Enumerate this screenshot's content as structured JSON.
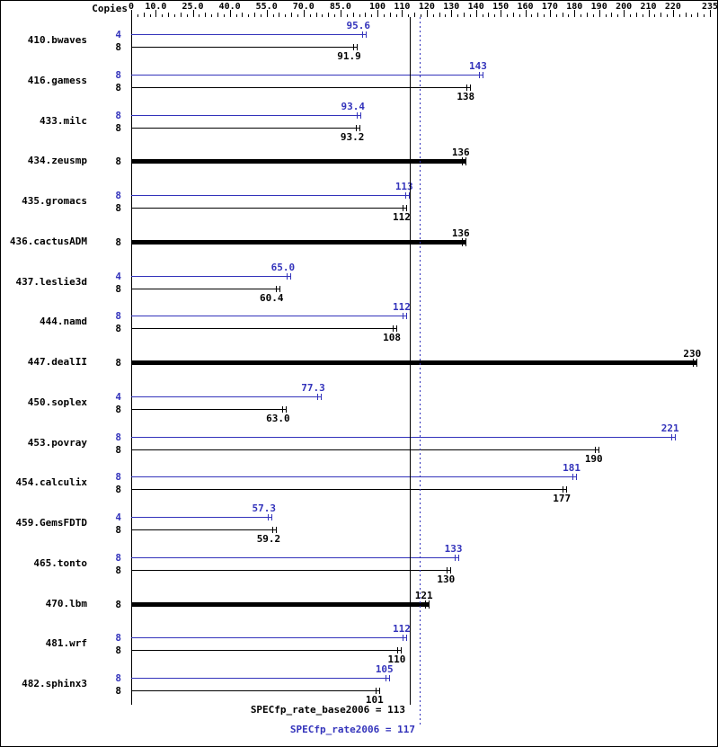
{
  "colors": {
    "peak": "#3333bb",
    "base": "#000000",
    "background": "#ffffff"
  },
  "chart_data": {
    "type": "bar",
    "orientation": "horizontal",
    "title": "",
    "copies_header": "Copies",
    "axis": {
      "min": 0,
      "max": 235,
      "minor_tick_step": 2.5,
      "mid_tick_step": 5,
      "ticks": [
        {
          "value": 0,
          "label": "0"
        },
        {
          "value": 10,
          "label": "10.0"
        },
        {
          "value": 25,
          "label": "25.0"
        },
        {
          "value": 40,
          "label": "40.0"
        },
        {
          "value": 55,
          "label": "55.0"
        },
        {
          "value": 70,
          "label": "70.0"
        },
        {
          "value": 85,
          "label": "85.0"
        },
        {
          "value": 100,
          "label": "100"
        },
        {
          "value": 110,
          "label": "110"
        },
        {
          "value": 120,
          "label": "120"
        },
        {
          "value": 130,
          "label": "130"
        },
        {
          "value": 140,
          "label": "140"
        },
        {
          "value": 150,
          "label": "150"
        },
        {
          "value": 160,
          "label": "160"
        },
        {
          "value": 170,
          "label": "170"
        },
        {
          "value": 180,
          "label": "180"
        },
        {
          "value": 190,
          "label": "190"
        },
        {
          "value": 200,
          "label": "200"
        },
        {
          "value": 210,
          "label": "210"
        },
        {
          "value": 220,
          "label": "220"
        },
        {
          "value": 235,
          "label": "235"
        }
      ]
    },
    "benchmarks": [
      {
        "name": "410.bwaves",
        "bars": [
          {
            "kind": "peak",
            "copies": "4",
            "value": 95.6,
            "label": "95.6"
          },
          {
            "kind": "base",
            "copies": "8",
            "value": 91.9,
            "label": "91.9"
          }
        ]
      },
      {
        "name": "416.gamess",
        "bars": [
          {
            "kind": "peak",
            "copies": "8",
            "value": 143,
            "label": "143"
          },
          {
            "kind": "base",
            "copies": "8",
            "value": 138,
            "label": "138"
          }
        ]
      },
      {
        "name": "433.milc",
        "bars": [
          {
            "kind": "peak",
            "copies": "8",
            "value": 93.4,
            "label": "93.4"
          },
          {
            "kind": "base",
            "copies": "8",
            "value": 93.2,
            "label": "93.2"
          }
        ]
      },
      {
        "name": "434.zeusmp",
        "bars": [
          {
            "kind": "single",
            "copies": "8",
            "value": 136,
            "label": "136"
          }
        ]
      },
      {
        "name": "435.gromacs",
        "bars": [
          {
            "kind": "peak",
            "copies": "8",
            "value": 113,
            "label": "113"
          },
          {
            "kind": "base",
            "copies": "8",
            "value": 112,
            "label": "112"
          }
        ]
      },
      {
        "name": "436.cactusADM",
        "bars": [
          {
            "kind": "single",
            "copies": "8",
            "value": 136,
            "label": "136"
          }
        ]
      },
      {
        "name": "437.leslie3d",
        "bars": [
          {
            "kind": "peak",
            "copies": "4",
            "value": 65.0,
            "label": "65.0"
          },
          {
            "kind": "base",
            "copies": "8",
            "value": 60.4,
            "label": "60.4"
          }
        ]
      },
      {
        "name": "444.namd",
        "bars": [
          {
            "kind": "peak",
            "copies": "8",
            "value": 112,
            "label": "112"
          },
          {
            "kind": "base",
            "copies": "8",
            "value": 108,
            "label": "108"
          }
        ]
      },
      {
        "name": "447.dealII",
        "bars": [
          {
            "kind": "single",
            "copies": "8",
            "value": 230,
            "label": "230"
          }
        ]
      },
      {
        "name": "450.soplex",
        "bars": [
          {
            "kind": "peak",
            "copies": "4",
            "value": 77.3,
            "label": "77.3"
          },
          {
            "kind": "base",
            "copies": "8",
            "value": 63.0,
            "label": "63.0"
          }
        ]
      },
      {
        "name": "453.povray",
        "bars": [
          {
            "kind": "peak",
            "copies": "8",
            "value": 221,
            "label": "221"
          },
          {
            "kind": "base",
            "copies": "8",
            "value": 190,
            "label": "190"
          }
        ]
      },
      {
        "name": "454.calculix",
        "bars": [
          {
            "kind": "peak",
            "copies": "8",
            "value": 181,
            "label": "181"
          },
          {
            "kind": "base",
            "copies": "8",
            "value": 177,
            "label": "177"
          }
        ]
      },
      {
        "name": "459.GemsFDTD",
        "bars": [
          {
            "kind": "peak",
            "copies": "4",
            "value": 57.3,
            "label": "57.3"
          },
          {
            "kind": "base",
            "copies": "8",
            "value": 59.2,
            "label": "59.2"
          }
        ]
      },
      {
        "name": "465.tonto",
        "bars": [
          {
            "kind": "peak",
            "copies": "8",
            "value": 133,
            "label": "133"
          },
          {
            "kind": "base",
            "copies": "8",
            "value": 130,
            "label": "130"
          }
        ]
      },
      {
        "name": "470.lbm",
        "bars": [
          {
            "kind": "single",
            "copies": "8",
            "value": 121,
            "label": "121"
          }
        ]
      },
      {
        "name": "481.wrf",
        "bars": [
          {
            "kind": "peak",
            "copies": "8",
            "value": 112,
            "label": "112"
          },
          {
            "kind": "base",
            "copies": "8",
            "value": 110,
            "label": "110"
          }
        ]
      },
      {
        "name": "482.sphinx3",
        "bars": [
          {
            "kind": "peak",
            "copies": "8",
            "value": 105,
            "label": "105"
          },
          {
            "kind": "base",
            "copies": "8",
            "value": 101,
            "label": "101"
          }
        ]
      }
    ],
    "reference_lines": [
      {
        "name": "base-mean",
        "value": 113,
        "style": "solid",
        "color": "#000000"
      },
      {
        "name": "peak-mean",
        "value": 117,
        "style": "dotted",
        "color": "#3333bb"
      }
    ],
    "footer": {
      "base_label": "SPECfp_rate_base2006 = 113",
      "peak_label": "SPECfp_rate2006 = 117"
    }
  }
}
